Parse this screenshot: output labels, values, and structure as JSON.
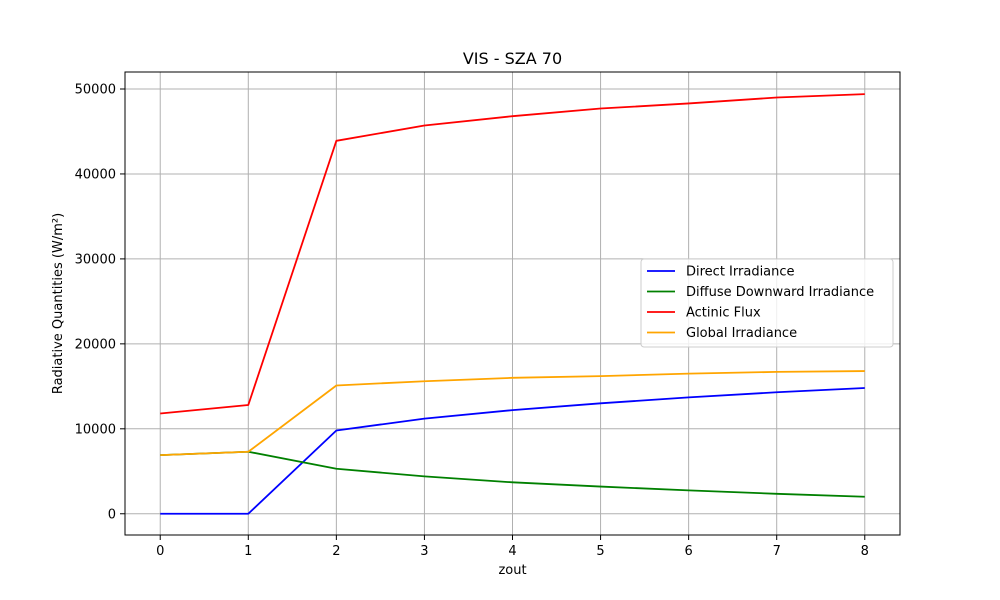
{
  "chart_data": {
    "type": "line",
    "title": "VIS - SZA 70",
    "xlabel": "zout",
    "ylabel": "Radiative Quantities (W/m²)",
    "x": [
      0,
      1,
      2,
      3,
      4,
      5,
      6,
      7,
      8
    ],
    "xlim": [
      -0.4,
      8.4
    ],
    "ylim": [
      -2500,
      52000
    ],
    "xticks": [
      "0",
      "1",
      "2",
      "3",
      "4",
      "5",
      "6",
      "7",
      "8"
    ],
    "yticks": [
      "0",
      "10000",
      "20000",
      "30000",
      "40000",
      "50000"
    ],
    "grid": true,
    "legend_position": "center-right",
    "series": [
      {
        "name": "Direct Irradiance",
        "color": "#0000ff",
        "values": [
          0,
          0,
          9800,
          11200,
          12200,
          13000,
          13700,
          14300,
          14800
        ]
      },
      {
        "name": "Diffuse Downward Irradiance",
        "color": "#008000",
        "values": [
          6900,
          7300,
          5300,
          4400,
          3700,
          3200,
          2750,
          2350,
          2000
        ]
      },
      {
        "name": "Actinic Flux",
        "color": "#ff0000",
        "values": [
          11800,
          12800,
          43900,
          45700,
          46800,
          47700,
          48300,
          49000,
          49400
        ]
      },
      {
        "name": "Global Irradiance",
        "color": "#ffa500",
        "values": [
          6900,
          7300,
          15100,
          15600,
          16000,
          16200,
          16500,
          16700,
          16800
        ]
      }
    ]
  }
}
